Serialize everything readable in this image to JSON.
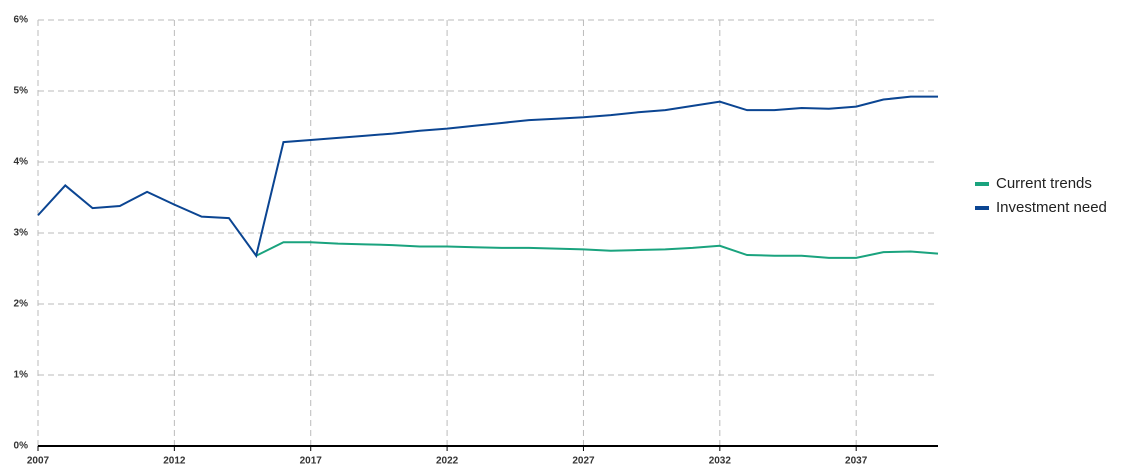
{
  "chart_data": {
    "type": "line",
    "x": [
      2007,
      2008,
      2009,
      2010,
      2011,
      2012,
      2013,
      2014,
      2015,
      2016,
      2017,
      2018,
      2019,
      2020,
      2021,
      2022,
      2023,
      2024,
      2025,
      2026,
      2027,
      2028,
      2029,
      2030,
      2031,
      2032,
      2033,
      2034,
      2035,
      2036,
      2037,
      2038,
      2039,
      2040
    ],
    "series": [
      {
        "name": "Current trends",
        "color": "#1aa37e",
        "values": [
          null,
          null,
          null,
          null,
          null,
          null,
          null,
          null,
          2.68,
          2.87,
          2.87,
          2.85,
          2.84,
          2.83,
          2.81,
          2.81,
          2.8,
          2.79,
          2.79,
          2.78,
          2.77,
          2.75,
          2.76,
          2.77,
          2.79,
          2.82,
          2.69,
          2.68,
          2.68,
          2.65,
          2.65,
          2.73,
          2.74,
          2.71
        ]
      },
      {
        "name": "Investment need",
        "color": "#0b4592",
        "values": [
          3.25,
          3.67,
          3.35,
          3.38,
          3.58,
          3.4,
          3.23,
          3.21,
          2.68,
          4.28,
          4.31,
          4.34,
          4.37,
          4.4,
          4.44,
          4.47,
          4.51,
          4.55,
          4.59,
          4.61,
          4.63,
          4.66,
          4.7,
          4.73,
          4.79,
          4.85,
          4.73,
          4.73,
          4.76,
          4.75,
          4.78,
          4.88,
          4.92,
          4.92
        ]
      }
    ],
    "xlim": [
      2007,
      2040
    ],
    "xticks": [
      2007,
      2012,
      2017,
      2022,
      2027,
      2032,
      2037
    ],
    "ylim": [
      0,
      6
    ],
    "yticks": [
      {
        "value": 0,
        "label": "0%"
      },
      {
        "value": 1,
        "label": "1%"
      },
      {
        "value": 2,
        "label": "2%"
      },
      {
        "value": 3,
        "label": "3%"
      },
      {
        "value": 4,
        "label": "4%"
      },
      {
        "value": 5,
        "label": "5%"
      },
      {
        "value": 6,
        "label": "6%"
      }
    ],
    "grid": true,
    "legend": "right"
  }
}
